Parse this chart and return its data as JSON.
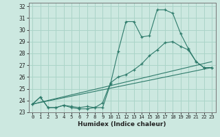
{
  "title": "",
  "xlabel": "Humidex (Indice chaleur)",
  "ylabel": "",
  "bg_color": "#cce8e0",
  "grid_color": "#aad4c8",
  "line_color": "#2d7a6a",
  "xlim": [
    -0.5,
    23.5
  ],
  "ylim": [
    23,
    32.3
  ],
  "yticks": [
    23,
    24,
    25,
    26,
    27,
    28,
    29,
    30,
    31,
    32
  ],
  "xticks": [
    0,
    1,
    2,
    3,
    4,
    5,
    6,
    7,
    8,
    9,
    10,
    11,
    12,
    13,
    14,
    15,
    16,
    17,
    18,
    19,
    20,
    21,
    22,
    23
  ],
  "series": {
    "line1": {
      "x": [
        0,
        1,
        2,
        3,
        4,
        5,
        6,
        7,
        8,
        9,
        10,
        11,
        12,
        13,
        14,
        15,
        16,
        17,
        18,
        19,
        20,
        21,
        22,
        23
      ],
      "y": [
        23.7,
        24.3,
        23.4,
        23.4,
        23.6,
        23.4,
        23.3,
        23.3,
        23.4,
        23.4,
        25.4,
        28.2,
        30.7,
        30.7,
        29.4,
        29.5,
        31.7,
        31.7,
        31.4,
        29.7,
        28.4,
        27.3,
        26.8,
        26.8
      ]
    },
    "line2": {
      "x": [
        0,
        1,
        2,
        3,
        4,
        5,
        6,
        7,
        8,
        9,
        10,
        11,
        12,
        13,
        14,
        15,
        16,
        17,
        18,
        19,
        20,
        21,
        22,
        23
      ],
      "y": [
        23.7,
        24.3,
        23.4,
        23.4,
        23.6,
        23.5,
        23.4,
        23.5,
        23.4,
        23.8,
        25.5,
        26.0,
        26.2,
        26.6,
        27.1,
        27.8,
        28.3,
        28.9,
        29.0,
        28.6,
        28.3,
        27.3,
        26.8,
        26.8
      ]
    },
    "line3": {
      "x": [
        0,
        23
      ],
      "y": [
        23.7,
        26.8
      ]
    },
    "line4": {
      "x": [
        0,
        23
      ],
      "y": [
        23.7,
        27.3
      ]
    }
  }
}
